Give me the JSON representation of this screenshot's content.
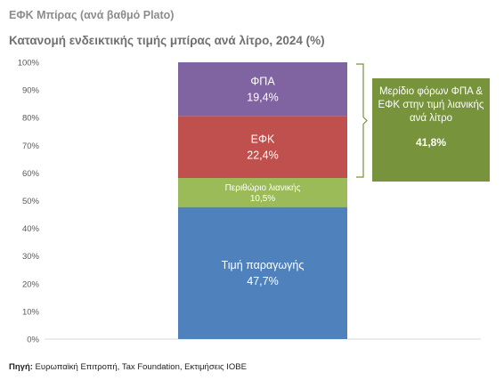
{
  "header": {
    "supertitle": "ΕΦΚ Μπίρας (ανά βαθμό Plato)",
    "title": "Κατανομή ενδεικτικής τιμής μπίρας ανά λίτρο, 2024 (%)"
  },
  "chart_data": {
    "type": "bar",
    "stacked": true,
    "title": "Κατανομή ενδεικτικής τιμής μπίρας ανά λίτρο, 2024 (%)",
    "ylim": [
      0,
      100
    ],
    "y_ticks": [
      "0%",
      "10%",
      "20%",
      "30%",
      "40%",
      "50%",
      "60%",
      "70%",
      "80%",
      "90%",
      "100%"
    ],
    "grid": false,
    "series": [
      {
        "name": "Τιμή παραγωγής",
        "value": 47.7,
        "label": "47,7%",
        "color": "#4f81bd"
      },
      {
        "name": "Περιθώριο λιανικής",
        "value": 10.5,
        "label": "10,5%",
        "color": "#9bbb59"
      },
      {
        "name": "ΕΦΚ",
        "value": 22.4,
        "label": "22,4%",
        "color": "#c0504d"
      },
      {
        "name": "ΦΠΑ",
        "value": 19.4,
        "label": "19,4%",
        "color": "#8064a2"
      }
    ],
    "annotation": {
      "text": "Μερίδιο φόρων ΦΠΑ & ΕΦΚ στην τιμή λιανικής ανά λίτρο",
      "value": "41,8%",
      "color": "#77933c"
    }
  },
  "source": {
    "prefix": "Πηγή:",
    "text": " Ευρωπαϊκή Επιτροπή, Tax Foundation, Εκτιμήσεις ΙΟΒΕ"
  }
}
